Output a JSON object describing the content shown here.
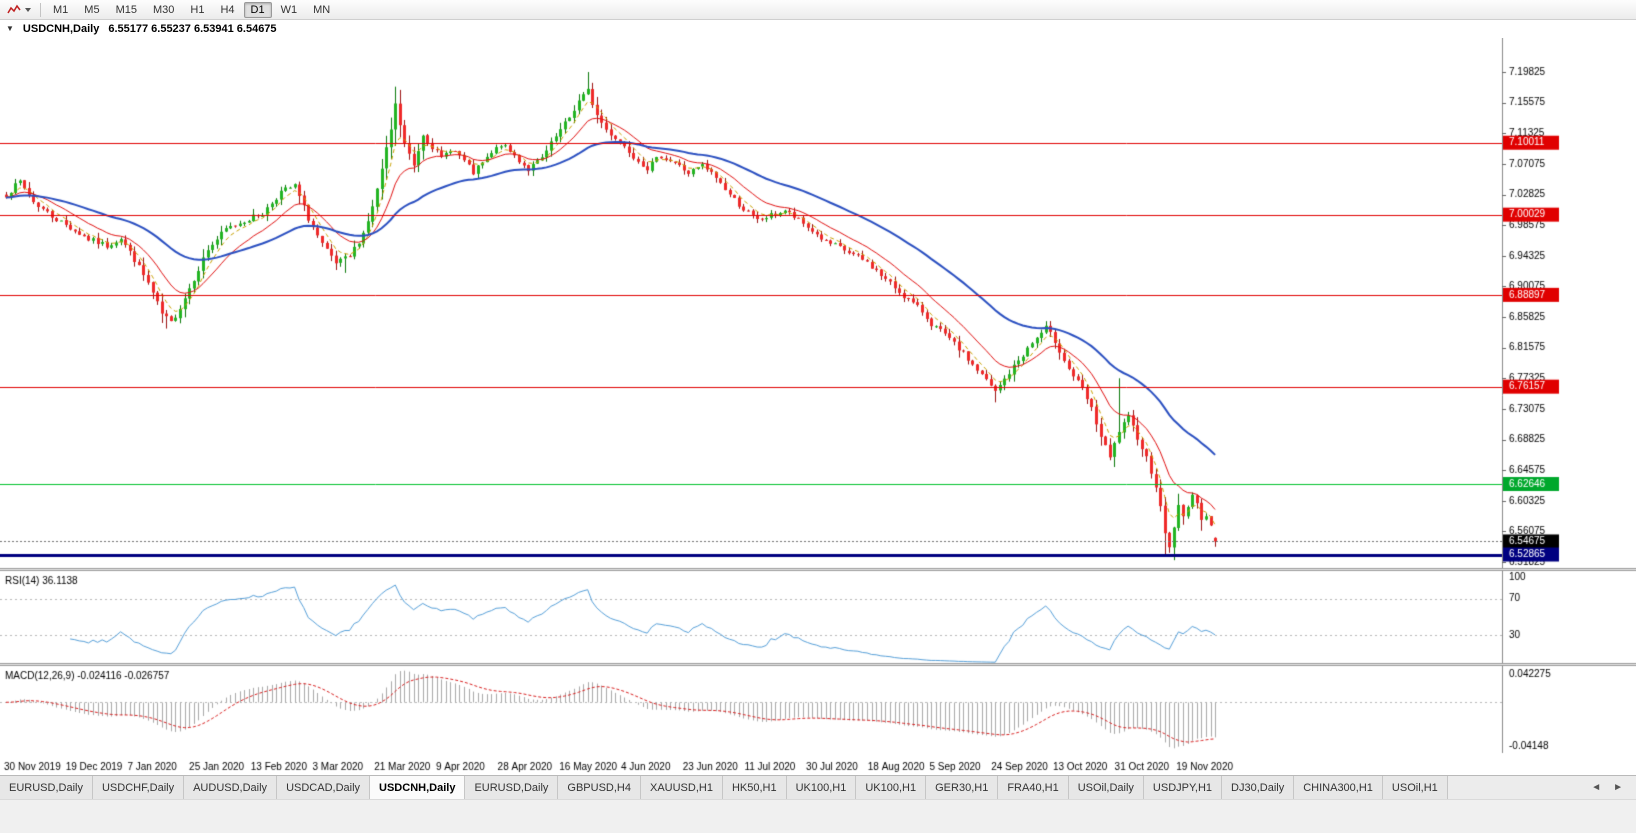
{
  "toolbar": {
    "timeframes": [
      {
        "label": "M1",
        "active": false
      },
      {
        "label": "M5",
        "active": false
      },
      {
        "label": "M15",
        "active": false
      },
      {
        "label": "M30",
        "active": false
      },
      {
        "label": "H1",
        "active": false
      },
      {
        "label": "H4",
        "active": false
      },
      {
        "label": "D1",
        "active": true
      },
      {
        "label": "W1",
        "active": false
      },
      {
        "label": "MN",
        "active": false
      }
    ]
  },
  "chart": {
    "title": "USDCNH,Daily",
    "ohlc": "6.55177 6.55237 6.53941 6.54675",
    "collapse_icon": "▼"
  },
  "chart_data": {
    "type": "candlestick",
    "symbol": "USDCNH",
    "timeframe": "Daily",
    "num_candles": 265,
    "seed": 7,
    "last": {
      "open": 6.55177,
      "high": 6.55237,
      "low": 6.53941,
      "close": 6.54675
    },
    "y_axis": {
      "max": 7.19825,
      "min": 6.51825,
      "step": 0.0425,
      "labels": [
        "7.19825",
        "7.15575",
        "7.11325",
        "7.07075",
        "7.02825",
        "6.98575",
        "6.94325",
        "6.90075",
        "6.85825",
        "6.81575",
        "6.77325",
        "6.73075",
        "6.68825",
        "6.64575",
        "6.60325",
        "6.56075",
        "6.51825"
      ]
    },
    "x_labels": [
      "30 Nov 2019",
      "19 Dec 2019",
      "7 Jan 2020",
      "25 Jan 2020",
      "13 Feb 2020",
      "3 Mar 2020",
      "21 Mar 2020",
      "9 Apr 2020",
      "28 Apr 2020",
      "16 May 2020",
      "4 Jun 2020",
      "23 Jun 2020",
      "11 Jul 2020",
      "30 Jul 2020",
      "18 Aug 2020",
      "5 Sep 2020",
      "24 Sep 2020",
      "13 Oct 2020",
      "31 Oct 2020",
      "19 Nov 2020"
    ],
    "levels": [
      {
        "price": 7.10011,
        "label": "7.10011",
        "color": "#e00000",
        "style": "solid",
        "width": 1,
        "badge": "#e00000"
      },
      {
        "price": 7.00029,
        "label": "7.00029",
        "color": "#e00000",
        "style": "solid",
        "width": 1,
        "badge": "#e00000"
      },
      {
        "price": 6.88897,
        "label": "6.88897",
        "color": "#e00000",
        "style": "solid",
        "width": 1,
        "badge": "#e00000"
      },
      {
        "price": 6.76157,
        "label": "6.76157",
        "color": "#e00000",
        "style": "solid",
        "width": 1,
        "badge": "#e00000"
      },
      {
        "price": 6.62646,
        "label": "6.62646",
        "color": "#00c22c",
        "style": "solid",
        "width": 1,
        "badge": "#00a82c"
      },
      {
        "price": 6.54675,
        "label": "6.54675",
        "color": "#707070",
        "style": "dotted",
        "width": 1,
        "badge": "#000000"
      },
      {
        "price": 6.52865,
        "label": "6.52865",
        "color": "#000080",
        "style": "solid",
        "width": 3,
        "badge": "#000080"
      }
    ],
    "anchors": [
      [
        0,
        7.028
      ],
      [
        3,
        7.046
      ],
      [
        6,
        7.018
      ],
      [
        10,
        6.998
      ],
      [
        14,
        6.982
      ],
      [
        18,
        6.966
      ],
      [
        22,
        6.957
      ],
      [
        25,
        6.968
      ],
      [
        28,
        6.938
      ],
      [
        31,
        6.905
      ],
      [
        34,
        6.862
      ],
      [
        36,
        6.85
      ],
      [
        38,
        6.872
      ],
      [
        41,
        6.912
      ],
      [
        44,
        6.952
      ],
      [
        48,
        6.98
      ],
      [
        52,
        6.992
      ],
      [
        56,
        7.002
      ],
      [
        60,
        7.032
      ],
      [
        63,
        7.04
      ],
      [
        66,
        6.995
      ],
      [
        69,
        6.958
      ],
      [
        72,
        6.932
      ],
      [
        75,
        6.942
      ],
      [
        78,
        6.975
      ],
      [
        80,
        7.01
      ],
      [
        82,
        7.062
      ],
      [
        84,
        7.118
      ],
      [
        85,
        7.152
      ],
      [
        87,
        7.098
      ],
      [
        89,
        7.068
      ],
      [
        91,
        7.112
      ],
      [
        93,
        7.095
      ],
      [
        95,
        7.078
      ],
      [
        97,
        7.092
      ],
      [
        99,
        7.082
      ],
      [
        102,
        7.058
      ],
      [
        105,
        7.078
      ],
      [
        108,
        7.098
      ],
      [
        111,
        7.082
      ],
      [
        114,
        7.063
      ],
      [
        117,
        7.078
      ],
      [
        120,
        7.108
      ],
      [
        123,
        7.135
      ],
      [
        125,
        7.158
      ],
      [
        127,
        7.172
      ],
      [
        129,
        7.138
      ],
      [
        131,
        7.118
      ],
      [
        134,
        7.102
      ],
      [
        137,
        7.082
      ],
      [
        140,
        7.065
      ],
      [
        143,
        7.082
      ],
      [
        146,
        7.072
      ],
      [
        149,
        7.058
      ],
      [
        152,
        7.068
      ],
      [
        155,
        7.052
      ],
      [
        158,
        7.028
      ],
      [
        161,
        7.008
      ],
      [
        164,
        6.992
      ],
      [
        167,
        6.999
      ],
      [
        170,
        7.006
      ],
      [
        173,
        6.992
      ],
      [
        176,
        6.978
      ],
      [
        179,
        6.962
      ],
      [
        182,
        6.954
      ],
      [
        185,
        6.944
      ],
      [
        188,
        6.934
      ],
      [
        191,
        6.916
      ],
      [
        194,
        6.899
      ],
      [
        197,
        6.882
      ],
      [
        200,
        6.866
      ],
      [
        202,
        6.849
      ],
      [
        205,
        6.833
      ],
      [
        208,
        6.814
      ],
      [
        211,
        6.792
      ],
      [
        214,
        6.77
      ],
      [
        216,
        6.754
      ],
      [
        218,
        6.772
      ],
      [
        221,
        6.798
      ],
      [
        224,
        6.822
      ],
      [
        227,
        6.843
      ],
      [
        229,
        6.825
      ],
      [
        232,
        6.786
      ],
      [
        235,
        6.758
      ],
      [
        237,
        6.73
      ],
      [
        239,
        6.692
      ],
      [
        241,
        6.662
      ],
      [
        243,
        6.7
      ],
      [
        245,
        6.718
      ],
      [
        247,
        6.692
      ],
      [
        249,
        6.663
      ],
      [
        251,
        6.625
      ],
      [
        253,
        6.56
      ],
      [
        254,
        6.538
      ],
      [
        255,
        6.568
      ],
      [
        256,
        6.595
      ],
      [
        257,
        6.58
      ],
      [
        258,
        6.598
      ],
      [
        259,
        6.612
      ],
      [
        260,
        6.596
      ],
      [
        261,
        6.58
      ],
      [
        262,
        6.585
      ],
      [
        263,
        6.57
      ],
      [
        264,
        6.5468
      ]
    ],
    "spikes": [
      {
        "i": 35,
        "low": 6.8422
      },
      {
        "i": 74,
        "low": 6.9195
      },
      {
        "i": 85,
        "high": 7.1655
      },
      {
        "i": 127,
        "high": 7.1982
      },
      {
        "i": 216,
        "low": 6.7398
      },
      {
        "i": 243,
        "high": 6.7732
      },
      {
        "i": 253,
        "low": 6.5269
      }
    ],
    "moving_averages": [
      {
        "period": 5,
        "color": "#c8a000",
        "dash": [
          4,
          3
        ],
        "width": 1
      },
      {
        "period": 13,
        "color": "#e01010",
        "dash": [],
        "width": 1
      },
      {
        "period": 40,
        "color": "#2a4fc0",
        "dash": [],
        "width": 2
      }
    ],
    "indicators": {
      "rsi": {
        "label": "RSI(14)",
        "value": "36.1138",
        "period": 14,
        "line_color": "#569fd8",
        "levels": [
          70,
          30
        ],
        "axis_labels": [
          "100",
          "70",
          "30"
        ],
        "range": [
          0,
          100
        ]
      },
      "macd": {
        "label": "MACD(12,26,9)",
        "value": "-0.024116 -0.026757",
        "fast": 12,
        "slow": 26,
        "signal": 9,
        "hist_color": "#a8a8a8",
        "signal_color": "#d82020",
        "axis_labels": {
          "top": "0.042275",
          "bottom": "-0.04148"
        }
      }
    }
  },
  "tabs": {
    "items": [
      {
        "label": "EURUSD,Daily",
        "active": false
      },
      {
        "label": "USDCHF,Daily",
        "active": false
      },
      {
        "label": "AUDUSD,Daily",
        "active": false
      },
      {
        "label": "USDCAD,Daily",
        "active": false
      },
      {
        "label": "USDCNH,Daily",
        "active": true
      },
      {
        "label": "EURUSD,Daily",
        "active": false
      },
      {
        "label": "GBPUSD,H4",
        "active": false
      },
      {
        "label": "XAUUSD,H1",
        "active": false
      },
      {
        "label": "HK50,H1",
        "active": false
      },
      {
        "label": "UK100,H1",
        "active": false
      },
      {
        "label": "UK100,H1",
        "active": false
      },
      {
        "label": "GER30,H1",
        "active": false
      },
      {
        "label": "FRA40,H1",
        "active": false
      },
      {
        "label": "USOil,Daily",
        "active": false
      },
      {
        "label": "USDJPY,H1",
        "active": false
      },
      {
        "label": "DJ30,Daily",
        "active": false
      },
      {
        "label": "CHINA300,H1",
        "active": false
      },
      {
        "label": "USOil,H1",
        "active": false
      }
    ],
    "scroll_left": "◄",
    "scroll_right": "►"
  }
}
